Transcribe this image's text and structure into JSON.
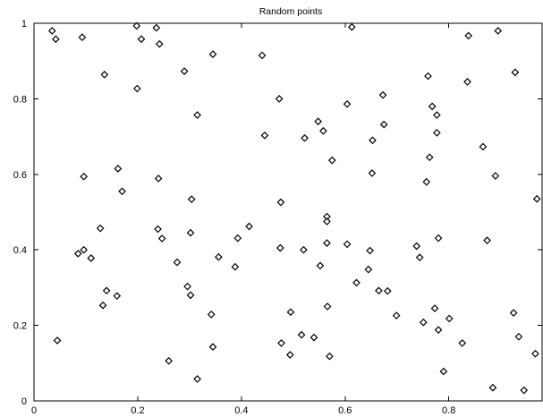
{
  "chart_data": {
    "type": "scatter",
    "title": "Random points",
    "xlabel": "",
    "ylabel": "",
    "xlim": [
      0,
      0.98
    ],
    "ylim": [
      0,
      1
    ],
    "xticks": [
      0,
      0.2,
      0.4,
      0.6,
      0.8
    ],
    "xtick_labels": [
      "0",
      "0.2",
      "0.4",
      "0.6",
      "0.8"
    ],
    "yticks": [
      0,
      0.2,
      0.4,
      0.6,
      0.8,
      1
    ],
    "ytick_labels": [
      "0",
      "0.2",
      "0.4",
      "0.6",
      "0.8",
      "1"
    ],
    "grid": false,
    "marker": "diamond",
    "marker_color": "#000000",
    "points": [
      [
        0.035,
        0.98
      ],
      [
        0.042,
        0.958
      ],
      [
        0.093,
        0.963
      ],
      [
        0.198,
        0.993
      ],
      [
        0.236,
        0.988
      ],
      [
        0.207,
        0.958
      ],
      [
        0.242,
        0.945
      ],
      [
        0.136,
        0.864
      ],
      [
        0.199,
        0.827
      ],
      [
        0.29,
        0.873
      ],
      [
        0.345,
        0.918
      ],
      [
        0.44,
        0.915
      ],
      [
        0.613,
        0.99
      ],
      [
        0.838,
        0.967
      ],
      [
        0.895,
        0.98
      ],
      [
        0.315,
        0.757
      ],
      [
        0.473,
        0.8
      ],
      [
        0.445,
        0.703
      ],
      [
        0.522,
        0.696
      ],
      [
        0.548,
        0.74
      ],
      [
        0.558,
        0.715
      ],
      [
        0.575,
        0.637
      ],
      [
        0.604,
        0.786
      ],
      [
        0.653,
        0.69
      ],
      [
        0.673,
        0.81
      ],
      [
        0.675,
        0.732
      ],
      [
        0.76,
        0.86
      ],
      [
        0.768,
        0.78
      ],
      [
        0.777,
        0.757
      ],
      [
        0.777,
        0.71
      ],
      [
        0.836,
        0.845
      ],
      [
        0.928,
        0.87
      ],
      [
        0.096,
        0.594
      ],
      [
        0.162,
        0.615
      ],
      [
        0.17,
        0.555
      ],
      [
        0.24,
        0.589
      ],
      [
        0.304,
        0.534
      ],
      [
        0.476,
        0.526
      ],
      [
        0.652,
        0.603
      ],
      [
        0.757,
        0.58
      ],
      [
        0.763,
        0.645
      ],
      [
        0.866,
        0.673
      ],
      [
        0.89,
        0.596
      ],
      [
        0.97,
        0.535
      ],
      [
        0.085,
        0.39
      ],
      [
        0.096,
        0.4
      ],
      [
        0.11,
        0.378
      ],
      [
        0.128,
        0.457
      ],
      [
        0.239,
        0.455
      ],
      [
        0.247,
        0.43
      ],
      [
        0.302,
        0.445
      ],
      [
        0.356,
        0.381
      ],
      [
        0.388,
        0.355
      ],
      [
        0.393,
        0.431
      ],
      [
        0.415,
        0.462
      ],
      [
        0.475,
        0.405
      ],
      [
        0.52,
        0.4
      ],
      [
        0.552,
        0.358
      ],
      [
        0.565,
        0.488
      ],
      [
        0.565,
        0.475
      ],
      [
        0.565,
        0.418
      ],
      [
        0.604,
        0.415
      ],
      [
        0.648,
        0.398
      ],
      [
        0.738,
        0.41
      ],
      [
        0.744,
        0.38
      ],
      [
        0.78,
        0.431
      ],
      [
        0.874,
        0.425
      ],
      [
        0.133,
        0.253
      ],
      [
        0.14,
        0.292
      ],
      [
        0.16,
        0.278
      ],
      [
        0.276,
        0.367
      ],
      [
        0.296,
        0.303
      ],
      [
        0.302,
        0.28
      ],
      [
        0.342,
        0.229
      ],
      [
        0.345,
        0.143
      ],
      [
        0.26,
        0.106
      ],
      [
        0.315,
        0.058
      ],
      [
        0.045,
        0.16
      ],
      [
        0.477,
        0.153
      ],
      [
        0.494,
        0.122
      ],
      [
        0.495,
        0.235
      ],
      [
        0.516,
        0.175
      ],
      [
        0.54,
        0.168
      ],
      [
        0.566,
        0.25
      ],
      [
        0.57,
        0.118
      ],
      [
        0.622,
        0.313
      ],
      [
        0.645,
        0.348
      ],
      [
        0.665,
        0.292
      ],
      [
        0.682,
        0.291
      ],
      [
        0.699,
        0.226
      ],
      [
        0.751,
        0.208
      ],
      [
        0.773,
        0.245
      ],
      [
        0.78,
        0.188
      ],
      [
        0.79,
        0.078
      ],
      [
        0.801,
        0.218
      ],
      [
        0.826,
        0.153
      ],
      [
        0.885,
        0.035
      ],
      [
        0.925,
        0.233
      ],
      [
        0.935,
        0.17
      ],
      [
        0.945,
        0.028
      ],
      [
        0.967,
        0.125
      ]
    ]
  }
}
